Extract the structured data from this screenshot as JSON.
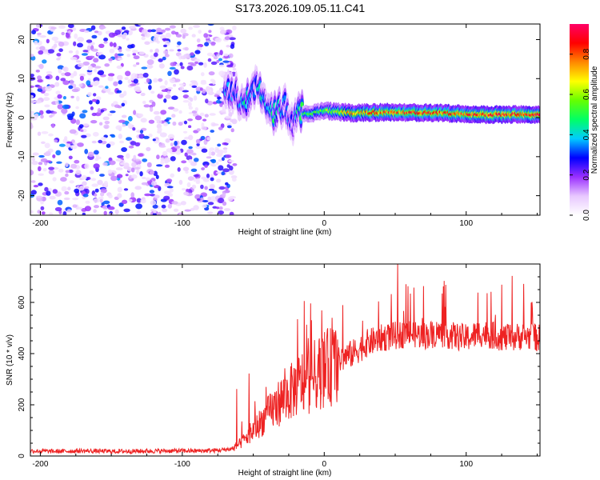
{
  "title": "S173.2026.109.05.11.C41",
  "chart_data": [
    {
      "type": "heatmap",
      "xlabel": "Height of straight line (km)",
      "ylabel": "Frequency (Hz)",
      "xlim": [
        -207,
        152
      ],
      "ylim": [
        -25,
        24
      ],
      "xticks": [
        -200,
        -100,
        0,
        100
      ],
      "yticks": [
        -20,
        -10,
        0,
        10,
        20
      ],
      "noise_region": {
        "x_range": [
          -207,
          -63
        ],
        "freq_range": [
          -25,
          24
        ],
        "amplitude_range": [
          0.05,
          0.35
        ]
      },
      "signal_ridge": [
        {
          "x": -70,
          "freq": 8,
          "amplitude": 0.35
        },
        {
          "x": -60,
          "freq": 5,
          "amplitude": 0.3
        },
        {
          "x": -55,
          "freq": 4,
          "amplitude": 0.45
        },
        {
          "x": -48,
          "freq": 9,
          "amplitude": 0.3
        },
        {
          "x": -45,
          "freq": 8,
          "amplitude": 0.45
        },
        {
          "x": -40,
          "freq": 4,
          "amplitude": 0.35
        },
        {
          "x": -35,
          "freq": 1,
          "amplitude": 0.45
        },
        {
          "x": -28,
          "freq": 3,
          "amplitude": 0.35
        },
        {
          "x": -22,
          "freq": -2,
          "amplitude": 0.25
        },
        {
          "x": -18,
          "freq": 1,
          "amplitude": 0.45
        },
        {
          "x": -10,
          "freq": 1,
          "amplitude": 0.5
        },
        {
          "x": 0,
          "freq": 1.8,
          "amplitude": 0.55
        },
        {
          "x": 20,
          "freq": 1.2,
          "amplitude": 0.75
        },
        {
          "x": 50,
          "freq": 1.4,
          "amplitude": 0.8
        },
        {
          "x": 80,
          "freq": 1.2,
          "amplitude": 0.8
        },
        {
          "x": 110,
          "freq": 0.8,
          "amplitude": 0.85
        },
        {
          "x": 150,
          "freq": 0.8,
          "amplitude": 0.85
        }
      ],
      "colorbar": {
        "label": "Normalized spectral amplitude",
        "range": [
          0,
          0.95
        ],
        "ticks": [
          "0.0",
          "0.2",
          "0.4",
          "0.6",
          "0.8"
        ],
        "colors": [
          "#ffffff",
          "#e8c8ff",
          "#9b30ff",
          "#0000ff",
          "#00ccff",
          "#00ff66",
          "#66ff00",
          "#ffff00",
          "#ff8800",
          "#ff0000",
          "#ff0066"
        ]
      }
    },
    {
      "type": "line",
      "xlabel": "Height of straight line (km)",
      "ylabel": "SNR (10 * v/v)",
      "xlim": [
        -207,
        152
      ],
      "ylim": [
        0,
        750
      ],
      "xticks": [
        -200,
        -100,
        0,
        100
      ],
      "yticks": [
        0,
        200,
        400,
        600
      ],
      "color": "#ee2222",
      "series": [
        {
          "name": "SNR",
          "x": [
            -207,
            -190,
            -170,
            -150,
            -130,
            -110,
            -90,
            -75,
            -65,
            -60,
            -55,
            -50,
            -45,
            -40,
            -35,
            -30,
            -25,
            -20,
            -15,
            -10,
            -5,
            0,
            5,
            10,
            15,
            20,
            25,
            30,
            40,
            50,
            60,
            70,
            80,
            90,
            100,
            110,
            120,
            130,
            140,
            152
          ],
          "y": [
            20,
            18,
            20,
            18,
            19,
            20,
            20,
            22,
            28,
            45,
            70,
            100,
            130,
            160,
            190,
            220,
            240,
            270,
            290,
            300,
            320,
            340,
            350,
            370,
            390,
            400,
            420,
            440,
            460,
            470,
            480,
            470,
            480,
            470,
            460,
            480,
            470,
            460,
            470,
            460
          ]
        }
      ]
    }
  ]
}
